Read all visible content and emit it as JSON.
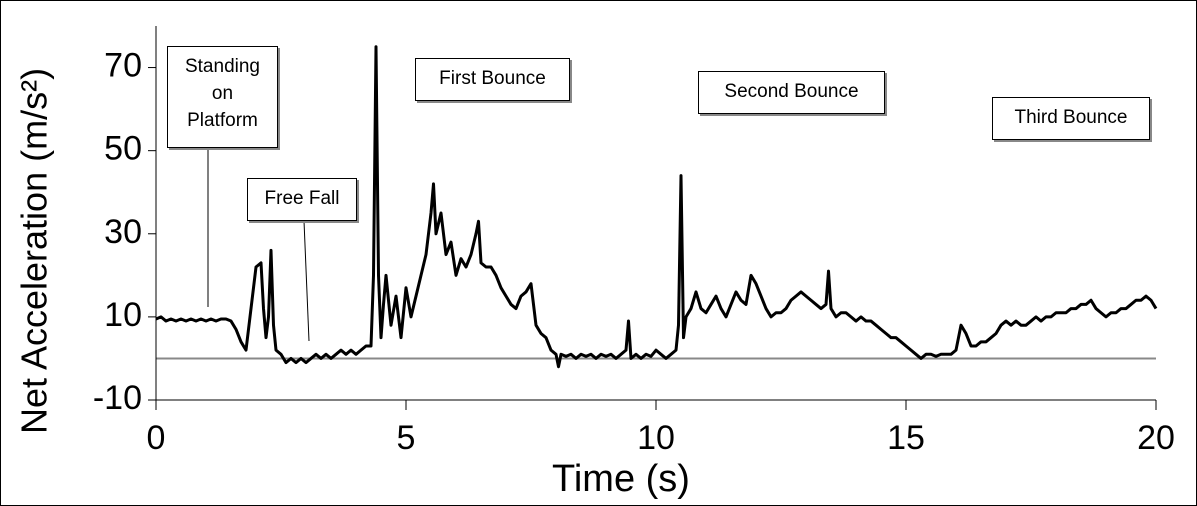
{
  "chart_data": {
    "type": "line",
    "xlabel": "Time (s)",
    "ylabel": "Net Acceleration (m/s²)",
    "xlim": [
      0,
      20
    ],
    "xticks": [
      0,
      5,
      10,
      15,
      20
    ],
    "ylim": [
      -10,
      80
    ],
    "yticks": [
      -10,
      10,
      30,
      50,
      70
    ],
    "color": "#000000",
    "annotations": [
      "Standing on Platform",
      "Free Fall",
      "First Bounce",
      "Second Bounce",
      "Third Bounce"
    ],
    "x": [
      0,
      0.1,
      0.2,
      0.3,
      0.4,
      0.5,
      0.6,
      0.7,
      0.8,
      0.9,
      1.0,
      1.1,
      1.2,
      1.3,
      1.4,
      1.5,
      1.6,
      1.7,
      1.8,
      1.9,
      2.0,
      2.1,
      2.15,
      2.2,
      2.25,
      2.3,
      2.35,
      2.4,
      2.5,
      2.6,
      2.7,
      2.8,
      2.9,
      3.0,
      3.1,
      3.2,
      3.3,
      3.4,
      3.5,
      3.6,
      3.7,
      3.8,
      3.9,
      4.0,
      4.1,
      4.2,
      4.3,
      4.35,
      4.4,
      4.45,
      4.5,
      4.55,
      4.6,
      4.7,
      4.8,
      4.9,
      5.0,
      5.1,
      5.2,
      5.3,
      5.4,
      5.5,
      5.55,
      5.6,
      5.7,
      5.8,
      5.9,
      6.0,
      6.1,
      6.2,
      6.3,
      6.4,
      6.45,
      6.5,
      6.6,
      6.7,
      6.8,
      6.9,
      7.0,
      7.1,
      7.2,
      7.3,
      7.4,
      7.5,
      7.6,
      7.7,
      7.8,
      7.9,
      8.0,
      8.05,
      8.1,
      8.2,
      8.3,
      8.4,
      8.5,
      8.6,
      8.7,
      8.8,
      8.9,
      9.0,
      9.1,
      9.2,
      9.3,
      9.4,
      9.45,
      9.5,
      9.6,
      9.7,
      9.8,
      9.9,
      10.0,
      10.1,
      10.2,
      10.3,
      10.4,
      10.45,
      10.5,
      10.55,
      10.6,
      10.7,
      10.8,
      10.9,
      11.0,
      11.1,
      11.2,
      11.3,
      11.4,
      11.5,
      11.6,
      11.7,
      11.8,
      11.9,
      12.0,
      12.1,
      12.2,
      12.3,
      12.4,
      12.5,
      12.6,
      12.7,
      12.8,
      12.9,
      13.0,
      13.1,
      13.2,
      13.3,
      13.4,
      13.45,
      13.5,
      13.6,
      13.7,
      13.8,
      13.9,
      14.0,
      14.1,
      14.2,
      14.3,
      14.4,
      14.5,
      14.6,
      14.7,
      14.8,
      14.9,
      15.0,
      15.1,
      15.2,
      15.3,
      15.4,
      15.5,
      15.6,
      15.7,
      15.8,
      15.9,
      16.0,
      16.1,
      16.2,
      16.3,
      16.4,
      16.5,
      16.6,
      16.7,
      16.8,
      16.9,
      17.0,
      17.1,
      17.2,
      17.3,
      17.4,
      17.5,
      17.6,
      17.7,
      17.8,
      17.9,
      18.0,
      18.1,
      18.2,
      18.3,
      18.4,
      18.5,
      18.6,
      18.7,
      18.8,
      18.9,
      19.0,
      19.1,
      19.2,
      19.3,
      19.4,
      19.5,
      19.6,
      19.7,
      19.8,
      19.9,
      20.0
    ],
    "values": [
      9.5,
      10,
      9,
      9.5,
      9,
      9.5,
      9,
      9.5,
      9,
      9.5,
      9,
      9.5,
      9,
      9.5,
      9.5,
      9,
      7,
      4,
      2,
      12,
      22,
      23,
      12,
      5,
      10,
      26,
      8,
      2,
      1,
      -1,
      0,
      -1,
      0,
      -1,
      0,
      1,
      0,
      1,
      0,
      1,
      2,
      1,
      2,
      1,
      2,
      3,
      3,
      20,
      75,
      20,
      5,
      13,
      20,
      8,
      15,
      5,
      17,
      10,
      15,
      20,
      25,
      35,
      42,
      30,
      35,
      25,
      28,
      20,
      24,
      22,
      25,
      30,
      33,
      23,
      22,
      22,
      20,
      17,
      15,
      13,
      12,
      15,
      16,
      18,
      8,
      6,
      5,
      2,
      1,
      -2,
      1,
      0.5,
      1,
      0,
      1,
      0.5,
      1,
      0,
      1,
      0.5,
      1,
      0,
      1,
      2,
      9,
      0,
      1,
      0,
      1,
      0.5,
      2,
      1,
      0,
      1,
      2,
      8,
      44,
      5,
      10,
      12,
      16,
      12,
      11,
      13,
      15,
      12,
      10,
      13,
      16,
      14,
      13,
      20,
      18,
      15,
      12,
      10,
      11,
      11,
      12,
      14,
      15,
      16,
      15,
      14,
      13,
      12,
      13,
      21,
      12,
      10,
      11,
      11,
      10,
      9,
      10,
      9,
      9,
      8,
      7,
      6,
      5,
      5,
      4,
      3,
      2,
      1,
      0,
      1,
      1,
      0.5,
      1,
      1,
      1,
      2,
      8,
      6,
      3,
      3,
      4,
      4,
      5,
      6,
      8,
      9,
      8,
      9,
      8,
      8,
      9,
      10,
      9,
      10,
      10,
      11,
      11,
      11,
      12,
      12,
      13,
      13,
      14,
      12,
      11,
      10,
      11,
      11,
      12,
      12,
      13,
      14,
      14,
      15,
      14,
      12
    ]
  }
}
